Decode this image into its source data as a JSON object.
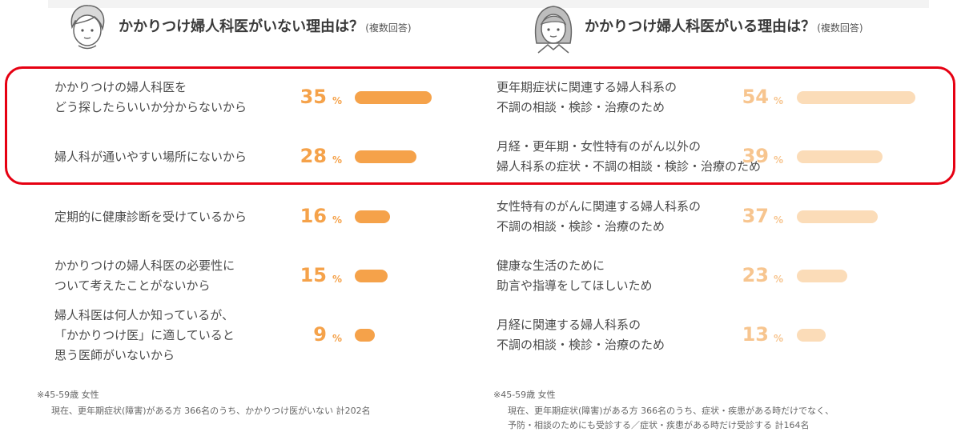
{
  "colors": {
    "left_bar": "#f5a24a",
    "right_bar": "#fbdcb8",
    "left_text": "#f5a24a",
    "right_text": "#f7c58f",
    "highlight": "#e60012"
  },
  "left_panel": {
    "title": "かかりつけ婦人科医がいない理由は？",
    "note": "(複数回答)",
    "icon": "woman-avatar-icon"
  },
  "right_panel": {
    "title": "かかりつけ婦人科医がいる理由は？",
    "note": "(複数回答)",
    "icon": "woman-avatar-icon"
  },
  "chart_data": [
    {
      "type": "bar",
      "title": "かかりつけ婦人科医がいない理由は？(複数回答)",
      "unit": "%",
      "categories": [
        [
          "かかりつけの婦人科医を",
          "どう探したらいいか分からないから"
        ],
        [
          "婦人科が通いやすい場所にないから"
        ],
        [
          "定期的に健康診断を受けているから"
        ],
        [
          "かかりつけの婦人科医の必要性に",
          "ついて考えたことがないから"
        ],
        [
          "婦人科医は何人か知っているが、",
          "「かかりつけ医」に適していると",
          "思う医師がいないから"
        ]
      ],
      "values": [
        35,
        28,
        16,
        15,
        9
      ]
    },
    {
      "type": "bar",
      "title": "かかりつけ婦人科医がいる理由は？(複数回答)",
      "unit": "%",
      "categories": [
        [
          "更年期症状に関連する婦人科系の",
          "不調の相談・検診・治療のため"
        ],
        [
          "月経・更年期・女性特有のがん以外の",
          "婦人科系の症状・不調の相談・検診・治療のため"
        ],
        [
          "女性特有のがんに関連する婦人科系の",
          "不調の相談・検診・治療のため"
        ],
        [
          "健康な生活のために",
          "助言や指導をしてほしいため"
        ],
        [
          "月経に関連する婦人科系の",
          "不調の相談・検診・治療のため"
        ]
      ],
      "values": [
        54,
        39,
        37,
        23,
        13
      ]
    }
  ],
  "footnotes": {
    "left": [
      "※45-59歳 女性",
      "現在、更年期症状(障害)がある方 366名のうち、かかりつけ医がいない 計202名"
    ],
    "right": [
      "※45-59歳 女性",
      "現在、更年期症状(障害)がある方 366名のうち、症状・疾患がある時だけでなく、",
      "予防・相談のためにも受診する／症状・疾患がある時だけ受診する 計164名"
    ]
  }
}
